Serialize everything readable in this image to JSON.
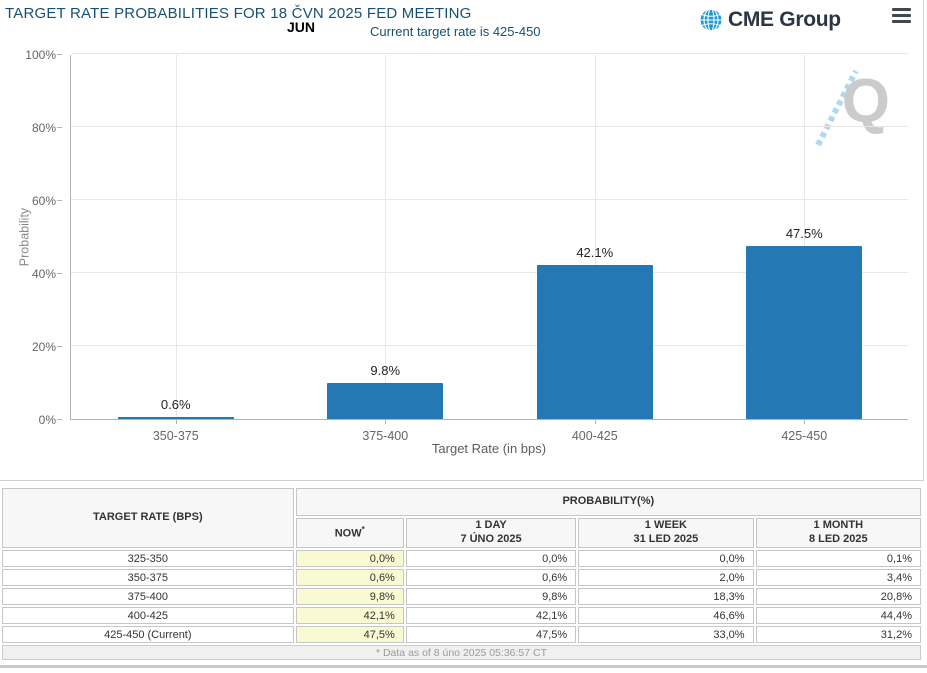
{
  "header": {
    "title": "TARGET RATE PROBABILITIES FOR 18 ČVN 2025 FED MEETING",
    "month_label": "JUN",
    "subtitle": "Current target rate is 425-450",
    "logo_text": "CME Group",
    "menu_icon": "hamburger-icon",
    "watermark_letter": "Q"
  },
  "colors": {
    "bar": "#2478b4",
    "title_navy": "#17516f",
    "now_column_highlight": "#fafad2",
    "logo_globe_blue": "#1f9ad6",
    "logo_text_dark": "#2b3642"
  },
  "chart_data": {
    "type": "bar",
    "title": "TARGET RATE PROBABILITIES FOR 18 ČVN 2025 FED MEETING",
    "categories": [
      "350-375",
      "375-400",
      "400-425",
      "425-450"
    ],
    "values": [
      0.6,
      9.8,
      42.1,
      47.5
    ],
    "bar_labels": [
      "0.6%",
      "9.8%",
      "42.1%",
      "47.5%"
    ],
    "xlabel": "Target Rate (in bps)",
    "ylabel": "Probability",
    "ylim": [
      0,
      100
    ],
    "yticks": [
      "0%",
      "20%",
      "40%",
      "60%",
      "80%",
      "100%"
    ],
    "grid": true,
    "legend": false,
    "bar_color": "#2478b4"
  },
  "table": {
    "rate_header": "TARGET RATE (BPS)",
    "group_header": "PROBABILITY(%)",
    "columns": [
      {
        "label": "NOW",
        "sup": "*",
        "sub": ""
      },
      {
        "label": "1 DAY",
        "sup": "",
        "sub": "7 ÚNO 2025"
      },
      {
        "label": "1 WEEK",
        "sup": "",
        "sub": "31 LED 2025"
      },
      {
        "label": "1 MONTH",
        "sup": "",
        "sub": "8 LED 2025"
      }
    ],
    "rows": [
      {
        "rate": "325-350",
        "values": [
          "0,0%",
          "0,0%",
          "0,0%",
          "0,1%"
        ]
      },
      {
        "rate": "350-375",
        "values": [
          "0,6%",
          "0,6%",
          "2,0%",
          "3,4%"
        ]
      },
      {
        "rate": "375-400",
        "values": [
          "9,8%",
          "9,8%",
          "18,3%",
          "20,8%"
        ]
      },
      {
        "rate": "400-425",
        "values": [
          "42,1%",
          "42,1%",
          "46,6%",
          "44,4%"
        ]
      },
      {
        "rate": "425-450 (Current)",
        "values": [
          "47,5%",
          "47,5%",
          "33,0%",
          "31,2%"
        ]
      }
    ],
    "footnote": "* Data as of 8 úno 2025 05:36:57 CT"
  }
}
